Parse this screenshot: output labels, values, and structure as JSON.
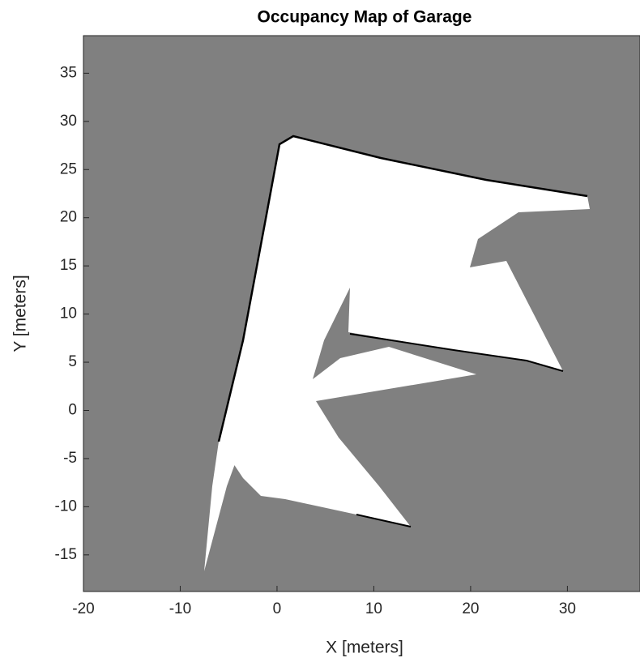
{
  "chart_data": {
    "type": "image",
    "title": "Occupancy Map of Garage",
    "xlabel": "X [meters]",
    "ylabel": "Y [meters]",
    "xlim": [
      -20,
      37.5
    ],
    "ylim": [
      -18.8,
      38.9
    ],
    "xticks": [
      -20,
      -10,
      0,
      10,
      20,
      30
    ],
    "yticks": [
      -15,
      -10,
      -5,
      0,
      5,
      10,
      15,
      20,
      25,
      30,
      35
    ],
    "unknown_color": "#808080",
    "free_color": "#ffffff"
  }
}
